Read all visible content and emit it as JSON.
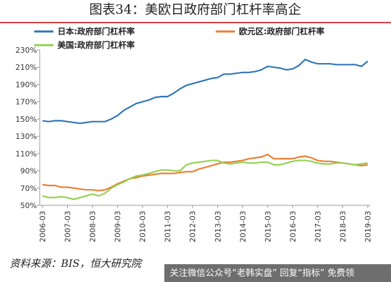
{
  "chart_data": {
    "type": "line",
    "title": "图表34：美欧日政府部门杠杆率高企",
    "source": "资料来源：BIS，恒大研究院",
    "watermark": "关注微信公众号“老韩实盘” 回复“指标” 免费领",
    "x": [
      "2006-03",
      "2006-06",
      "2006-09",
      "2006-12",
      "2007-03",
      "2007-06",
      "2007-09",
      "2007-12",
      "2008-03",
      "2008-06",
      "2008-09",
      "2008-12",
      "2009-03",
      "2009-06",
      "2009-09",
      "2009-12",
      "2010-03",
      "2010-06",
      "2010-09",
      "2010-12",
      "2011-03",
      "2011-06",
      "2011-09",
      "2011-12",
      "2012-03",
      "2012-06",
      "2012-09",
      "2012-12",
      "2013-03",
      "2013-06",
      "2013-09",
      "2013-12",
      "2014-03",
      "2014-06",
      "2014-09",
      "2014-12",
      "2015-03",
      "2015-06",
      "2015-09",
      "2015-12",
      "2016-03",
      "2016-06",
      "2016-09",
      "2016-12",
      "2017-03",
      "2017-06",
      "2017-09",
      "2017-12",
      "2018-03",
      "2018-06",
      "2018-09",
      "2018-12",
      "2019-03"
    ],
    "xticks": [
      "2006-03",
      "2007-03",
      "2008-03",
      "2009-03",
      "2010-03",
      "2011-03",
      "2012-03",
      "2013-03",
      "2014-03",
      "2015-03",
      "2016-03",
      "2017-03",
      "2018-03",
      "2019-03"
    ],
    "ylim": [
      50,
      230
    ],
    "yticks": [
      {
        "value": 50,
        "label": "50%"
      },
      {
        "value": 70,
        "label": "70%"
      },
      {
        "value": 90,
        "label": "90%"
      },
      {
        "value": 110,
        "label": "110%"
      },
      {
        "value": 130,
        "label": "130%"
      },
      {
        "value": 150,
        "label": "150%"
      },
      {
        "value": 170,
        "label": "170%"
      },
      {
        "value": 190,
        "label": "190%"
      },
      {
        "value": 210,
        "label": "210%"
      },
      {
        "value": 230,
        "label": "230%"
      }
    ],
    "series": [
      {
        "name": "日本:政府部门杠杆率",
        "color": "#2e75b6",
        "values": [
          148,
          147,
          148,
          148,
          147,
          146,
          145,
          146,
          147,
          147,
          147,
          150,
          154,
          160,
          164,
          168,
          170,
          172,
          175,
          176,
          176,
          180,
          185,
          189,
          191,
          193,
          195,
          197,
          198,
          202,
          202,
          203,
          204,
          204,
          205,
          207,
          211,
          210,
          209,
          207,
          208,
          212,
          219,
          216,
          214,
          214,
          214,
          213,
          213,
          213,
          213,
          211,
          217
        ]
      },
      {
        "name": "欧元区:政府部门杠杆率",
        "color": "#ed7d31",
        "values": [
          74,
          73,
          73,
          71,
          71,
          70,
          69,
          68,
          68,
          67,
          68,
          71,
          75,
          78,
          81,
          82,
          84,
          85,
          86,
          87,
          87,
          87,
          88,
          89,
          89,
          92,
          94,
          96,
          98,
          100,
          100,
          101,
          102,
          104,
          105,
          106,
          109,
          104,
          104,
          104,
          104,
          106,
          107,
          105,
          102,
          101,
          101,
          100,
          99,
          98,
          97,
          96,
          97
        ]
      },
      {
        "name": "美国:政府部门杠杆率",
        "color": "#92d050",
        "values": [
          61,
          59,
          59,
          60,
          59,
          57,
          59,
          61,
          63,
          61,
          64,
          70,
          74,
          77,
          81,
          84,
          85,
          87,
          89,
          91,
          91,
          90,
          90,
          97,
          99,
          100,
          101,
          102,
          102,
          99,
          98,
          99,
          100,
          99,
          99,
          100,
          100,
          97,
          97,
          99,
          101,
          102,
          102,
          101,
          99,
          98,
          98,
          99,
          99,
          98,
          97,
          98,
          99
        ]
      }
    ]
  }
}
